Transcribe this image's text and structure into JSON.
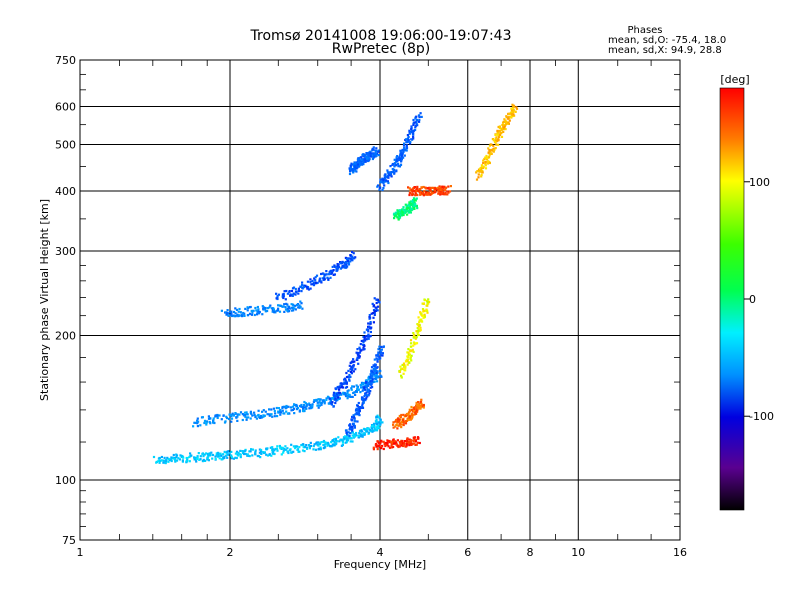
{
  "header": {
    "title": "Tromsø 20141008 19:06:00-19:07:43",
    "subtitle": "RwPretec (8p)"
  },
  "stats": {
    "title": "Phases",
    "line1": "mean, sd,O: -75.4, 18.0",
    "line2": "mean, sd,X:  94.9, 28.8"
  },
  "colorbar": {
    "unit": "[deg]",
    "range": [
      -180,
      180
    ],
    "tick_labels": [
      "100",
      "0",
      "-100"
    ],
    "tick_values": [
      100,
      0,
      -100
    ]
  },
  "chart_data": {
    "type": "scatter",
    "xlabel": "Frequency [MHz]",
    "ylabel": "Stationary phase Virtual Height [km]",
    "xscale": "log",
    "yscale": "log",
    "xlim": [
      1,
      16
    ],
    "ylim": [
      75,
      750
    ],
    "x_ticks": [
      1,
      2,
      4,
      6,
      8,
      10,
      16
    ],
    "y_ticks": [
      75,
      100,
      200,
      300,
      400,
      500,
      600,
      750
    ],
    "grid": true,
    "colormap": "rainbow phase, black (-180°) → purple → blue → cyan → green (0°) → yellow → orange → red (+180°)",
    "traces": [
      {
        "x": [
          1.42,
          1.6,
          1.8,
          2.0,
          2.3,
          2.6,
          3.0,
          3.3,
          3.6,
          3.9,
          4.0
        ],
        "y": [
          110,
          111,
          112,
          113,
          114,
          116,
          118,
          120,
          124,
          128,
          135
        ],
        "phase": -25
      },
      {
        "x": [
          1.7,
          2.0,
          2.3,
          2.6,
          2.9,
          3.2,
          3.5,
          3.8,
          4.0
        ],
        "y": [
          132,
          135,
          137,
          140,
          143,
          148,
          152,
          160,
          168
        ],
        "phase": -50
      },
      {
        "x": [
          3.2,
          3.4,
          3.6,
          3.8,
          3.95
        ],
        "y": [
          145,
          160,
          180,
          205,
          240
        ],
        "phase": -85
      },
      {
        "x": [
          3.45,
          3.6,
          3.75,
          3.9,
          4.05
        ],
        "y": [
          125,
          138,
          152,
          170,
          190
        ],
        "phase": -75
      },
      {
        "x": [
          2.5,
          2.8,
          3.1,
          3.35,
          3.55
        ],
        "y": [
          240,
          252,
          265,
          280,
          295
        ],
        "phase": -80
      },
      {
        "x": [
          1.95,
          2.2,
          2.5,
          2.8
        ],
        "y": [
          222,
          225,
          228,
          232
        ],
        "phase": -55
      },
      {
        "x": [
          3.5,
          3.6,
          3.7,
          3.8,
          3.95
        ],
        "y": [
          440,
          455,
          465,
          475,
          485
        ],
        "phase": -70
      },
      {
        "x": [
          4.0,
          4.2,
          4.4,
          4.6,
          4.8
        ],
        "y": [
          410,
          435,
          470,
          520,
          580
        ],
        "phase": -75
      },
      {
        "x": [
          4.3,
          4.45,
          4.6,
          4.75
        ],
        "y": [
          355,
          362,
          370,
          380
        ],
        "phase": 15
      },
      {
        "x": [
          4.4,
          4.6,
          4.8,
          5.0
        ],
        "y": [
          165,
          185,
          210,
          240
        ],
        "phase": 100
      },
      {
        "x": [
          4.3,
          4.5,
          4.7,
          4.9
        ],
        "y": [
          130,
          135,
          140,
          145
        ],
        "phase": 150
      },
      {
        "x": [
          3.9,
          4.2,
          4.5,
          4.8
        ],
        "y": [
          118,
          119,
          120,
          121
        ],
        "phase": 170
      },
      {
        "x": [
          4.6,
          4.9,
          5.2,
          5.5
        ],
        "y": [
          400,
          400,
          401,
          402
        ],
        "phase": 160
      },
      {
        "x": [
          6.3,
          6.6,
          6.9,
          7.2,
          7.5
        ],
        "y": [
          430,
          470,
          520,
          560,
          600
        ],
        "phase": 120
      }
    ]
  }
}
